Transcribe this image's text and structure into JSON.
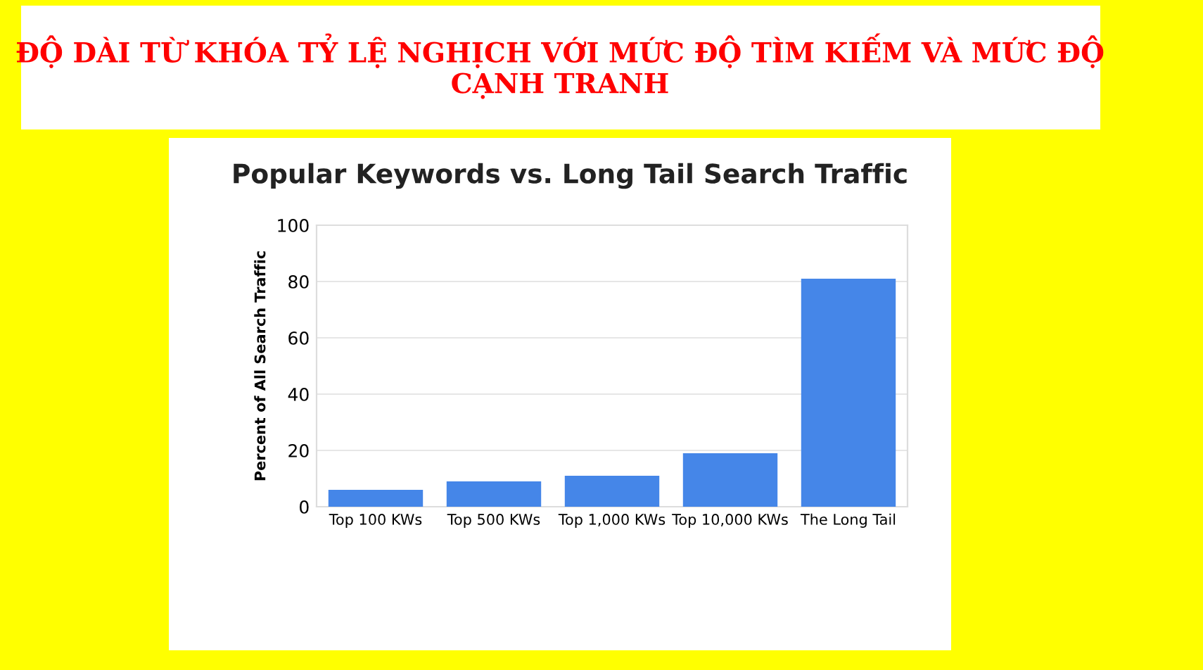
{
  "chart_data": {
    "type": "bar",
    "title": "ĐỘ DÀI TỪ KHÓA TỶ LỆ NGHỊCH VỚI MỨC ĐỘ TÌM KIẾM VÀ MỨC ĐỘ CẠNH TRANH",
    "subtitle": "Popular Keywords vs. Long Tail Search Traffic",
    "ylabel": "Percent of All Search Traffic",
    "categories": [
      "Top 100 KWs",
      "Top 500 KWs",
      "Top 1,000 KWs",
      "Top 10,000 KWs",
      "The Long Tail"
    ],
    "values": [
      6,
      9,
      11,
      19,
      81
    ],
    "color": "#4586e8",
    "ylim": [
      0,
      100
    ],
    "yticks": [
      0,
      20,
      40,
      60,
      80,
      100
    ],
    "grid": "y"
  }
}
